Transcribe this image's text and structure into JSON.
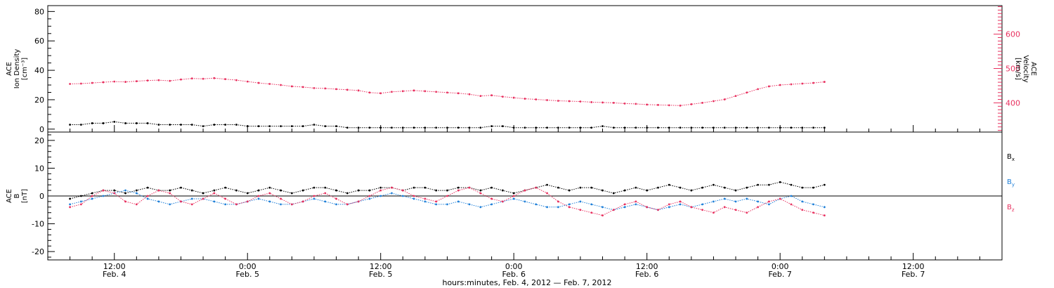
{
  "chart_data": [
    {
      "type": "scatter",
      "panel": "plasma",
      "ylabel_left": [
        "ACE",
        "Ion Density",
        "[cm⁻³]"
      ],
      "ylabel_right": [
        "ACE",
        "Velocity",
        "[km/s]"
      ],
      "ylim_left": [
        -2,
        84
      ],
      "ylim_right": [
        315,
        683
      ],
      "yticks_left": [
        "0",
        "20",
        "40",
        "60",
        "80"
      ],
      "yticks_right": [
        "400",
        "500",
        "600"
      ],
      "colors": {
        "density": "#000000",
        "velocity": "#e8305f"
      },
      "series": [
        {
          "axis": "left",
          "color": "#000000",
          "x": [
            0,
            1,
            2,
            3,
            4,
            5,
            6,
            7,
            8,
            9,
            10,
            11,
            12,
            13,
            14,
            15,
            16,
            17,
            18,
            19,
            20,
            21,
            22,
            23,
            24,
            25,
            26,
            27,
            28,
            29,
            30,
            31,
            32,
            33,
            34,
            35,
            36,
            37,
            38,
            39,
            40,
            41,
            42,
            43,
            44,
            45,
            46,
            47,
            48,
            49,
            50,
            51,
            52,
            53,
            54,
            55,
            56,
            57,
            58,
            59,
            60,
            61,
            62,
            63,
            64,
            65,
            66,
            67,
            68
          ],
          "values": [
            3,
            3,
            4,
            4,
            5,
            4,
            4,
            4,
            3,
            3,
            3,
            3,
            2,
            3,
            3,
            3,
            2,
            2,
            2,
            2,
            2,
            2,
            3,
            2,
            2,
            1,
            1,
            1,
            1,
            1,
            1,
            1,
            1,
            1,
            1,
            1,
            1,
            1,
            2,
            2,
            1,
            1,
            1,
            1,
            1,
            1,
            1,
            1,
            2,
            1,
            1,
            1,
            1,
            1,
            1,
            1,
            1,
            1,
            1,
            1,
            1,
            1,
            1,
            1,
            1,
            1,
            1,
            1,
            1
          ]
        },
        {
          "axis": "right",
          "color": "#e8305f",
          "x": [
            0,
            1,
            2,
            3,
            4,
            5,
            6,
            7,
            8,
            9,
            10,
            11,
            12,
            13,
            14,
            15,
            16,
            17,
            18,
            19,
            20,
            21,
            22,
            23,
            24,
            25,
            26,
            27,
            28,
            29,
            30,
            31,
            32,
            33,
            34,
            35,
            36,
            37,
            38,
            39,
            40,
            41,
            42,
            43,
            44,
            45,
            46,
            47,
            48,
            49,
            50,
            51,
            52,
            53,
            54,
            55,
            56,
            57,
            58,
            59,
            60,
            61,
            62,
            63,
            64,
            65,
            66,
            67,
            68
          ],
          "values": [
            455,
            456,
            458,
            460,
            462,
            461,
            463,
            465,
            466,
            464,
            468,
            471,
            470,
            472,
            469,
            466,
            462,
            458,
            455,
            452,
            448,
            446,
            443,
            442,
            440,
            438,
            436,
            430,
            428,
            432,
            434,
            436,
            434,
            432,
            430,
            428,
            425,
            420,
            422,
            418,
            415,
            412,
            410,
            408,
            406,
            405,
            404,
            402,
            401,
            400,
            398,
            397,
            395,
            394,
            393,
            392,
            396,
            400,
            405,
            410,
            420,
            430,
            440,
            448,
            452,
            454,
            456,
            458,
            461
          ]
        }
      ]
    },
    {
      "type": "scatter",
      "panel": "magnetic-field",
      "ylabel_left": [
        "ACE",
        "B",
        "[nT]"
      ],
      "ylim": [
        -23,
        23
      ],
      "yticks": [
        "-20",
        "-10",
        "0",
        "10",
        "20"
      ],
      "legend": [
        {
          "label": "Bx",
          "base": "B",
          "sub": "x",
          "color": "#000000"
        },
        {
          "label": "By",
          "base": "B",
          "sub": "y",
          "color": "#1e7fd8"
        },
        {
          "label": "Bz",
          "base": "B",
          "sub": "z",
          "color": "#e8305f"
        }
      ],
      "legend_placement": "right",
      "series": [
        {
          "name": "Bx",
          "color": "#000000",
          "x": [
            0,
            1,
            2,
            3,
            4,
            5,
            6,
            7,
            8,
            9,
            10,
            11,
            12,
            13,
            14,
            15,
            16,
            17,
            18,
            19,
            20,
            21,
            22,
            23,
            24,
            25,
            26,
            27,
            28,
            29,
            30,
            31,
            32,
            33,
            34,
            35,
            36,
            37,
            38,
            39,
            40,
            41,
            42,
            43,
            44,
            45,
            46,
            47,
            48,
            49,
            50,
            51,
            52,
            53,
            54,
            55,
            56,
            57,
            58,
            59,
            60,
            61,
            62,
            63,
            64,
            65,
            66,
            67,
            68
          ],
          "values": [
            -1,
            0,
            1,
            2,
            2,
            1,
            2,
            3,
            2,
            2,
            3,
            2,
            1,
            2,
            3,
            2,
            1,
            2,
            3,
            2,
            1,
            2,
            3,
            3,
            2,
            1,
            2,
            2,
            3,
            3,
            2,
            3,
            3,
            2,
            2,
            3,
            3,
            2,
            3,
            2,
            1,
            2,
            3,
            4,
            3,
            2,
            3,
            3,
            2,
            1,
            2,
            3,
            2,
            3,
            4,
            3,
            2,
            3,
            4,
            3,
            2,
            3,
            4,
            4,
            5,
            4,
            3,
            3,
            4
          ]
        },
        {
          "name": "By",
          "color": "#1e7fd8",
          "x": [
            0,
            1,
            2,
            3,
            4,
            5,
            6,
            7,
            8,
            9,
            10,
            11,
            12,
            13,
            14,
            15,
            16,
            17,
            18,
            19,
            20,
            21,
            22,
            23,
            24,
            25,
            26,
            27,
            28,
            29,
            30,
            31,
            32,
            33,
            34,
            35,
            36,
            37,
            38,
            39,
            40,
            41,
            42,
            43,
            44,
            45,
            46,
            47,
            48,
            49,
            50,
            51,
            52,
            53,
            54,
            55,
            56,
            57,
            58,
            59,
            60,
            61,
            62,
            63,
            64,
            65,
            66,
            67,
            68
          ],
          "values": [
            -3,
            -2,
            -1,
            0,
            1,
            2,
            1,
            -1,
            -2,
            -3,
            -2,
            -1,
            -1,
            -2,
            -3,
            -3,
            -2,
            -1,
            -2,
            -3,
            -3,
            -2,
            -1,
            -2,
            -3,
            -3,
            -2,
            -1,
            0,
            1,
            0,
            -1,
            -2,
            -3,
            -3,
            -2,
            -3,
            -4,
            -3,
            -2,
            -1,
            -2,
            -3,
            -4,
            -4,
            -3,
            -2,
            -3,
            -4,
            -5,
            -4,
            -3,
            -4,
            -5,
            -4,
            -3,
            -4,
            -3,
            -2,
            -1,
            -2,
            -1,
            -2,
            -3,
            -1,
            0,
            -2,
            -3,
            -4
          ]
        },
        {
          "name": "Bz",
          "color": "#e8305f",
          "x": [
            0,
            1,
            2,
            3,
            4,
            5,
            6,
            7,
            8,
            9,
            10,
            11,
            12,
            13,
            14,
            15,
            16,
            17,
            18,
            19,
            20,
            21,
            22,
            23,
            24,
            25,
            26,
            27,
            28,
            29,
            30,
            31,
            32,
            33,
            34,
            35,
            36,
            37,
            38,
            39,
            40,
            41,
            42,
            43,
            44,
            45,
            46,
            47,
            48,
            49,
            50,
            51,
            52,
            53,
            54,
            55,
            56,
            57,
            58,
            59,
            60,
            61,
            62,
            63,
            64,
            65,
            66,
            67,
            68
          ],
          "values": [
            -4,
            -3,
            0,
            2,
            1,
            -2,
            -3,
            0,
            2,
            1,
            -2,
            -3,
            -1,
            1,
            -1,
            -3,
            -2,
            0,
            1,
            -1,
            -3,
            -2,
            0,
            1,
            -1,
            -3,
            -2,
            0,
            2,
            3,
            2,
            0,
            -1,
            -2,
            0,
            2,
            3,
            1,
            -1,
            -2,
            0,
            2,
            3,
            1,
            -2,
            -4,
            -5,
            -6,
            -7,
            -5,
            -3,
            -2,
            -4,
            -5,
            -3,
            -2,
            -4,
            -5,
            -6,
            -4,
            -5,
            -6,
            -4,
            -2,
            -1,
            -3,
            -5,
            -6,
            -7
          ]
        }
      ]
    }
  ],
  "xaxis": {
    "ticks": [
      {
        "x": 4,
        "time": "12:00",
        "date": "Feb. 4"
      },
      {
        "x": 16,
        "time": "0:00",
        "date": "Feb. 5"
      },
      {
        "x": 28,
        "time": "12:00",
        "date": "Feb. 5"
      },
      {
        "x": 40,
        "time": "0:00",
        "date": "Feb. 6"
      },
      {
        "x": 52,
        "time": "12:00",
        "date": "Feb. 6"
      },
      {
        "x": 64,
        "time": "0:00",
        "date": "Feb. 7"
      },
      {
        "x": 76,
        "time": "12:00",
        "date": "Feb. 7"
      }
    ],
    "xlim": [
      -2,
      84
    ],
    "xlabel": "hours:minutes, Feb.  4, 2012 — Feb.  7, 2012"
  }
}
